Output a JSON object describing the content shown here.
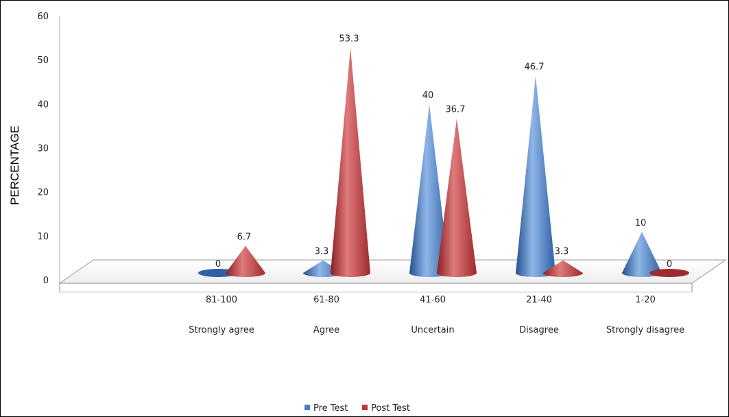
{
  "chart_data": {
    "type": "bar",
    "style": "3d-cone",
    "ylabel": "PERCENTAGE",
    "xlabel": "",
    "ylim": [
      0,
      60
    ],
    "yticks": [
      0,
      10,
      20,
      30,
      40,
      50,
      60
    ],
    "grid": false,
    "legend_position": "bottom",
    "categories": [
      "81-100",
      "61-80",
      "41-60",
      "21-40",
      "1-20"
    ],
    "category_descriptions": [
      "Strongly agree",
      "Agree",
      "Uncertain",
      "Disagree",
      "Strongly disagree"
    ],
    "series": [
      {
        "name": "Pre Test",
        "color": "#4a7fc4",
        "values": [
          0,
          3.3,
          40,
          46.7,
          10
        ],
        "labels": [
          "0",
          "3.3",
          "40",
          "46.7",
          "10"
        ]
      },
      {
        "name": "Post Test",
        "color": "#c0393b",
        "values": [
          6.7,
          53.3,
          36.7,
          3.3,
          0
        ],
        "labels": [
          "6.7",
          "53.3",
          "36.7",
          "3.3",
          "0"
        ]
      }
    ]
  }
}
